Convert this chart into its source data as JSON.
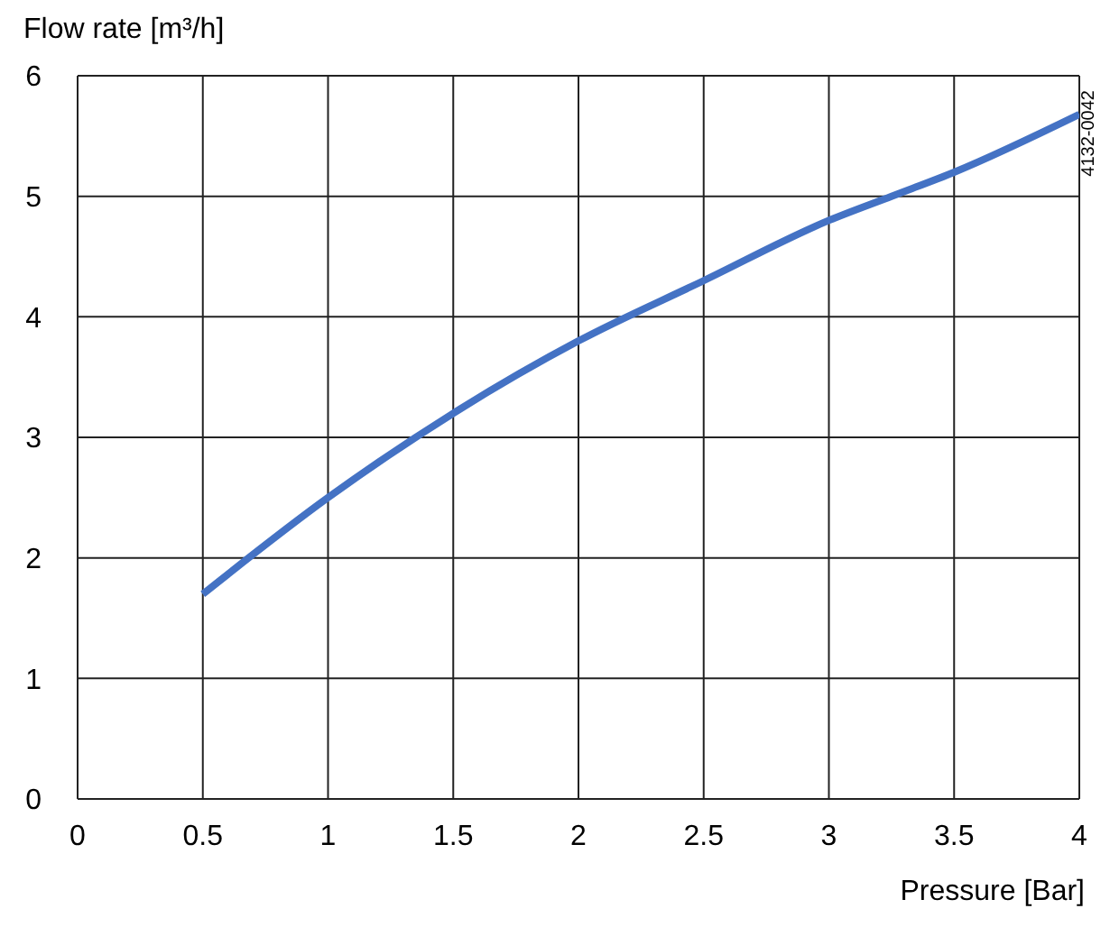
{
  "chart_data": {
    "type": "line",
    "ylabel": "Flow rate [m³/h]",
    "xlabel": "Pressure [Bar]",
    "annotations": [
      "4132-0042"
    ],
    "x": [
      0.5,
      1,
      1.5,
      2,
      2.5,
      3,
      3.25,
      3.5,
      4
    ],
    "series": [
      {
        "color": "#4472c4",
        "values": [
          1.7,
          2.5,
          3.2,
          3.8,
          4.3,
          4.8,
          5.0,
          5.2,
          5.68
        ]
      }
    ],
    "xlim": [
      0,
      4
    ],
    "xticks": [
      0,
      0.5,
      1,
      1.5,
      2,
      2.5,
      3,
      3.5,
      4
    ],
    "ylim": [
      0,
      6
    ],
    "yticks": [
      0,
      1,
      2,
      3,
      4,
      5,
      6
    ],
    "grid": true,
    "marker": "none",
    "line_style": "solid"
  }
}
